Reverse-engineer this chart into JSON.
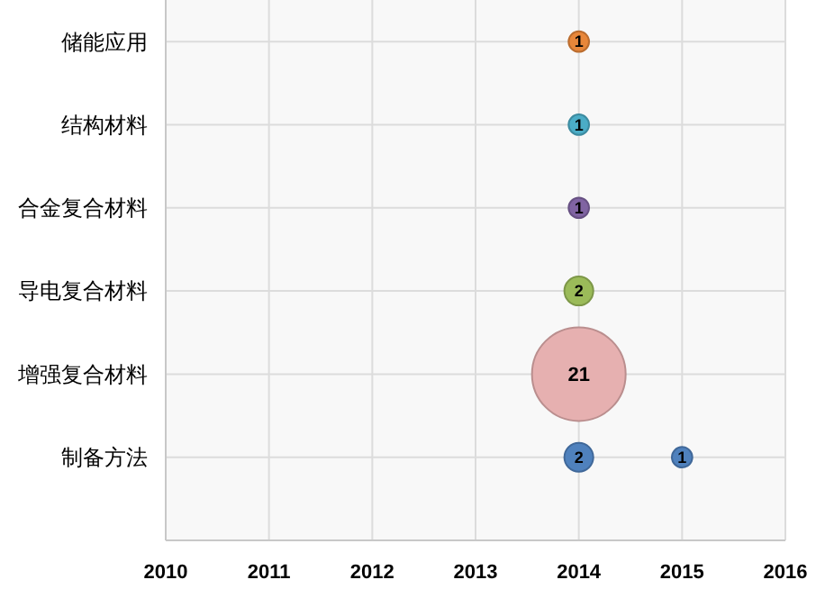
{
  "chart_data": {
    "type": "bubble",
    "orientation": "horizontal",
    "categories": [
      "储能应用",
      "结构材料",
      "合金复合材料",
      "导电复合材料",
      "增强复合材料",
      "制备方法"
    ],
    "xlim": [
      2010,
      2016
    ],
    "xticks": [
      2010,
      2011,
      2012,
      2013,
      2014,
      2015,
      2016
    ],
    "grid": true,
    "series": [
      {
        "values": [
          2014,
          2014,
          2014,
          2014,
          2014,
          2014
        ],
        "sizes": [
          1,
          1,
          1,
          2,
          21,
          2
        ],
        "colors": [
          "#e8873a",
          "#4bacc6",
          "#8064a2",
          "#9bbb59",
          "#e6b0b0",
          "#4f81bd"
        ],
        "value_labels": [
          "1",
          "1",
          "1",
          "2",
          "21",
          "2"
        ]
      },
      {
        "values": [
          null,
          null,
          null,
          null,
          null,
          2015
        ],
        "sizes": [
          null,
          null,
          null,
          null,
          null,
          1
        ],
        "color": "#4f81bd",
        "value_labels": [
          null,
          null,
          null,
          null,
          null,
          "1"
        ]
      }
    ]
  }
}
